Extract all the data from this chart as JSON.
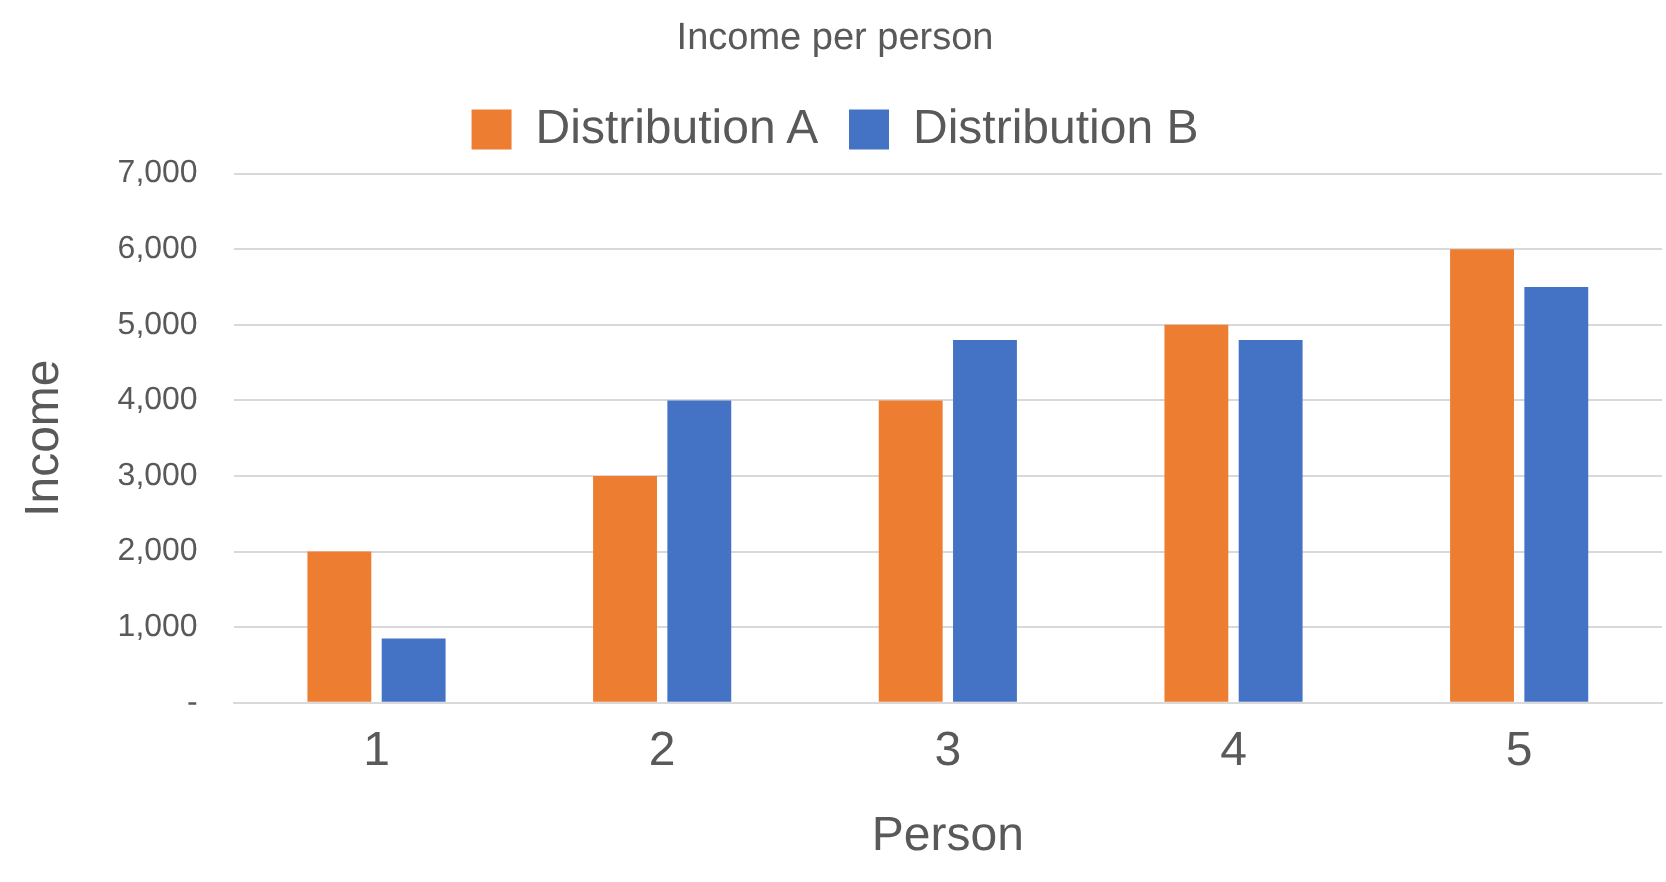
{
  "chart_data": {
    "type": "bar",
    "title": "Income per person",
    "xlabel": "Person",
    "ylabel": "Income",
    "categories": [
      "1",
      "2",
      "3",
      "4",
      "5"
    ],
    "series": [
      {
        "name": "Distribution A",
        "color": "#ed7d31",
        "values": [
          2000,
          3000,
          4000,
          5000,
          6000
        ]
      },
      {
        "name": "Distribution B",
        "color": "#4472c4",
        "values": [
          850,
          4000,
          4800,
          4800,
          5500
        ]
      }
    ],
    "ylim": [
      0,
      7000
    ],
    "yticks": [
      {
        "value": 0,
        "label": "-"
      },
      {
        "value": 1000,
        "label": "1,000"
      },
      {
        "value": 2000,
        "label": "2,000"
      },
      {
        "value": 3000,
        "label": "3,000"
      },
      {
        "value": 4000,
        "label": "4,000"
      },
      {
        "value": 5000,
        "label": "5,000"
      },
      {
        "value": 6000,
        "label": "6,000"
      },
      {
        "value": 7000,
        "label": "7,000"
      }
    ],
    "grid": "y",
    "legend": "top"
  }
}
